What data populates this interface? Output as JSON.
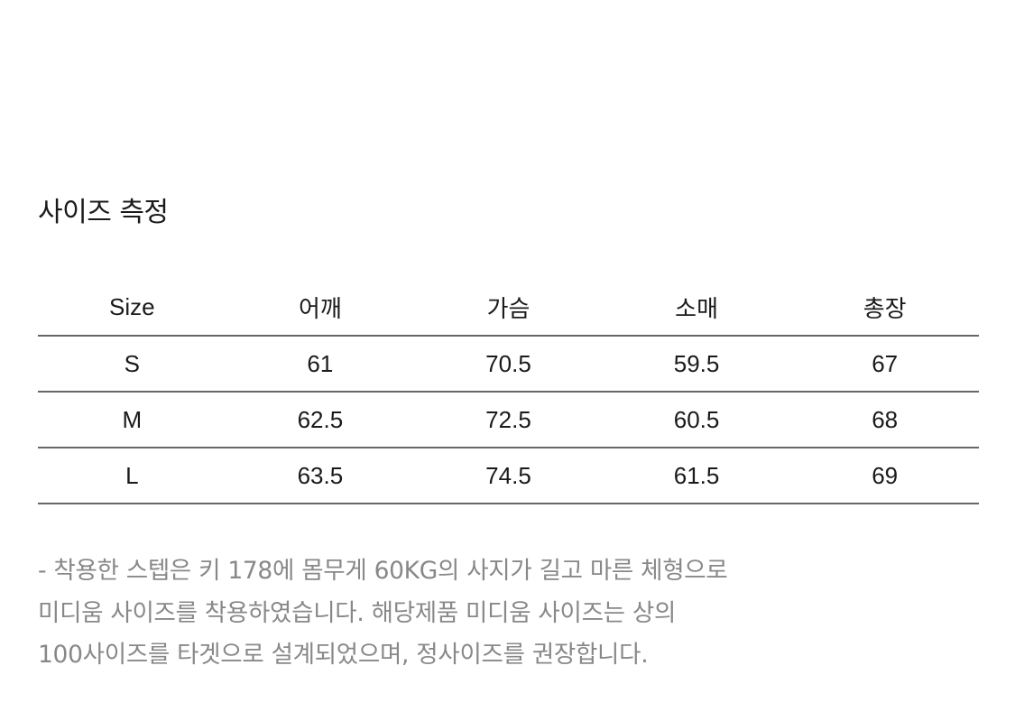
{
  "title": "사이즈 측정",
  "table": {
    "headers": [
      "Size",
      "어깨",
      "가슴",
      "소매",
      "총장"
    ],
    "rows": [
      [
        "S",
        "61",
        "70.5",
        "59.5",
        "67"
      ],
      [
        "M",
        "62.5",
        "72.5",
        "60.5",
        "68"
      ],
      [
        "L",
        "63.5",
        "74.5",
        "61.5",
        "69"
      ]
    ]
  },
  "note": {
    "lines": [
      "- 착용한 스텝은 키 178에 몸무게 60KG의 사지가 길고 마른 체형으로",
      "미디움 사이즈를 착용하였습니다. 해당제품 미디움 사이즈는 상의",
      "100사이즈를 타겟으로 설계되었으며, 정사이즈를 권장합니다."
    ]
  }
}
